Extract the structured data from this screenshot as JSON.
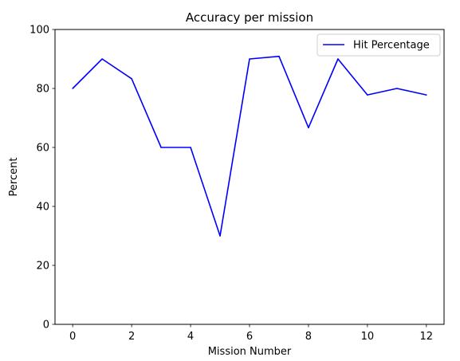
{
  "chart_data": {
    "type": "line",
    "title": "Accuracy per mission",
    "xlabel": "Mission Number",
    "ylabel": "Percent",
    "xlim": [
      -0.6,
      12.6
    ],
    "ylim": [
      0,
      100
    ],
    "xticks": [
      0,
      2,
      4,
      6,
      8,
      10,
      12
    ],
    "yticks": [
      0,
      20,
      40,
      60,
      80,
      100
    ],
    "grid": false,
    "legend_position": "top-right",
    "series": [
      {
        "name": "Hit Percentage",
        "color": "#0000ff",
        "x": [
          0,
          1,
          2,
          3,
          4,
          5,
          6,
          7,
          8,
          9,
          10,
          11,
          12
        ],
        "y": [
          80,
          90,
          83.3,
          60,
          60,
          30,
          90,
          90.9,
          66.7,
          90,
          77.8,
          80,
          77.8
        ]
      }
    ]
  }
}
